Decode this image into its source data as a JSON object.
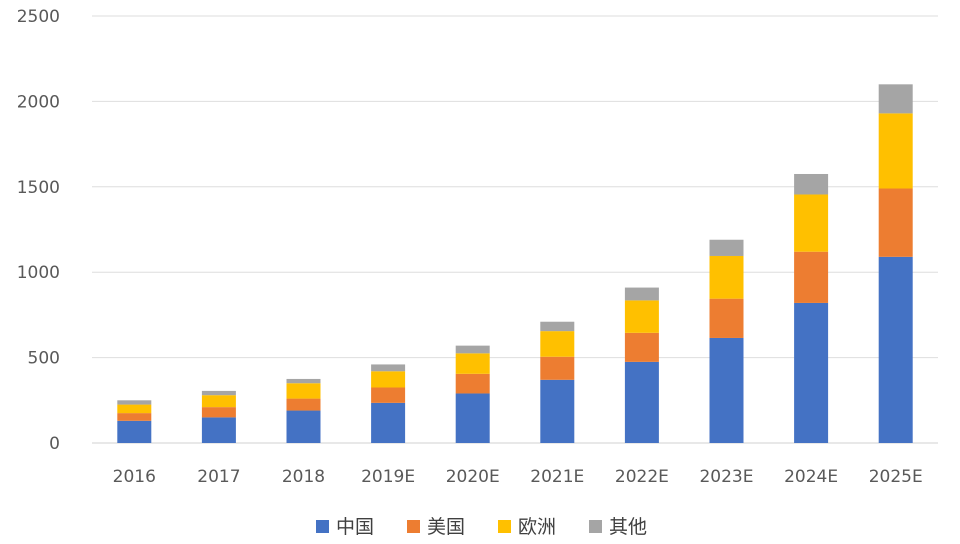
{
  "chart_data": {
    "type": "bar",
    "stacked": true,
    "categories": [
      "2016",
      "2017",
      "2018",
      "2019E",
      "2020E",
      "2021E",
      "2022E",
      "2023E",
      "2024E",
      "2025E"
    ],
    "series": [
      {
        "name": "中国",
        "color": "#4472C4",
        "values": [
          130,
          150,
          190,
          235,
          290,
          370,
          475,
          615,
          820,
          1090
        ]
      },
      {
        "name": "美国",
        "color": "#ED7D31",
        "values": [
          45,
          60,
          70,
          90,
          115,
          135,
          170,
          230,
          300,
          400
        ]
      },
      {
        "name": "欧洲",
        "color": "#FFC000",
        "values": [
          50,
          70,
          90,
          95,
          120,
          150,
          190,
          250,
          335,
          440
        ]
      },
      {
        "name": "其他",
        "color": "#A5A5A5",
        "values": [
          25,
          25,
          25,
          40,
          45,
          55,
          75,
          95,
          120,
          170
        ]
      }
    ],
    "y_ticks": [
      "0",
      "500",
      "1000",
      "1500",
      "2000",
      "2500"
    ],
    "ylim": [
      0,
      2500
    ],
    "grid": true,
    "legend_position": "bottom"
  }
}
